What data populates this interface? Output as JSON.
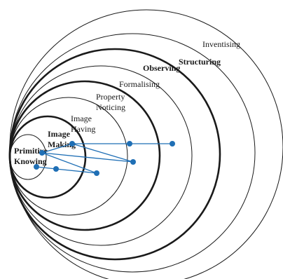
{
  "levels": {
    "primitive_knowing": [
      "Primitive",
      "Knowing"
    ],
    "image_making": [
      "Image",
      "Making"
    ],
    "image_having": [
      "Image",
      "Having"
    ],
    "property_noticing": [
      "Property",
      "Noticing"
    ],
    "formalising": "Formalising",
    "observing": "Observing",
    "structuring": "Structuring",
    "inventising": "Inventising"
  },
  "colors": {
    "ring": "#1a1a1a",
    "path": "#1f6fb5",
    "background": "#ffffff"
  }
}
